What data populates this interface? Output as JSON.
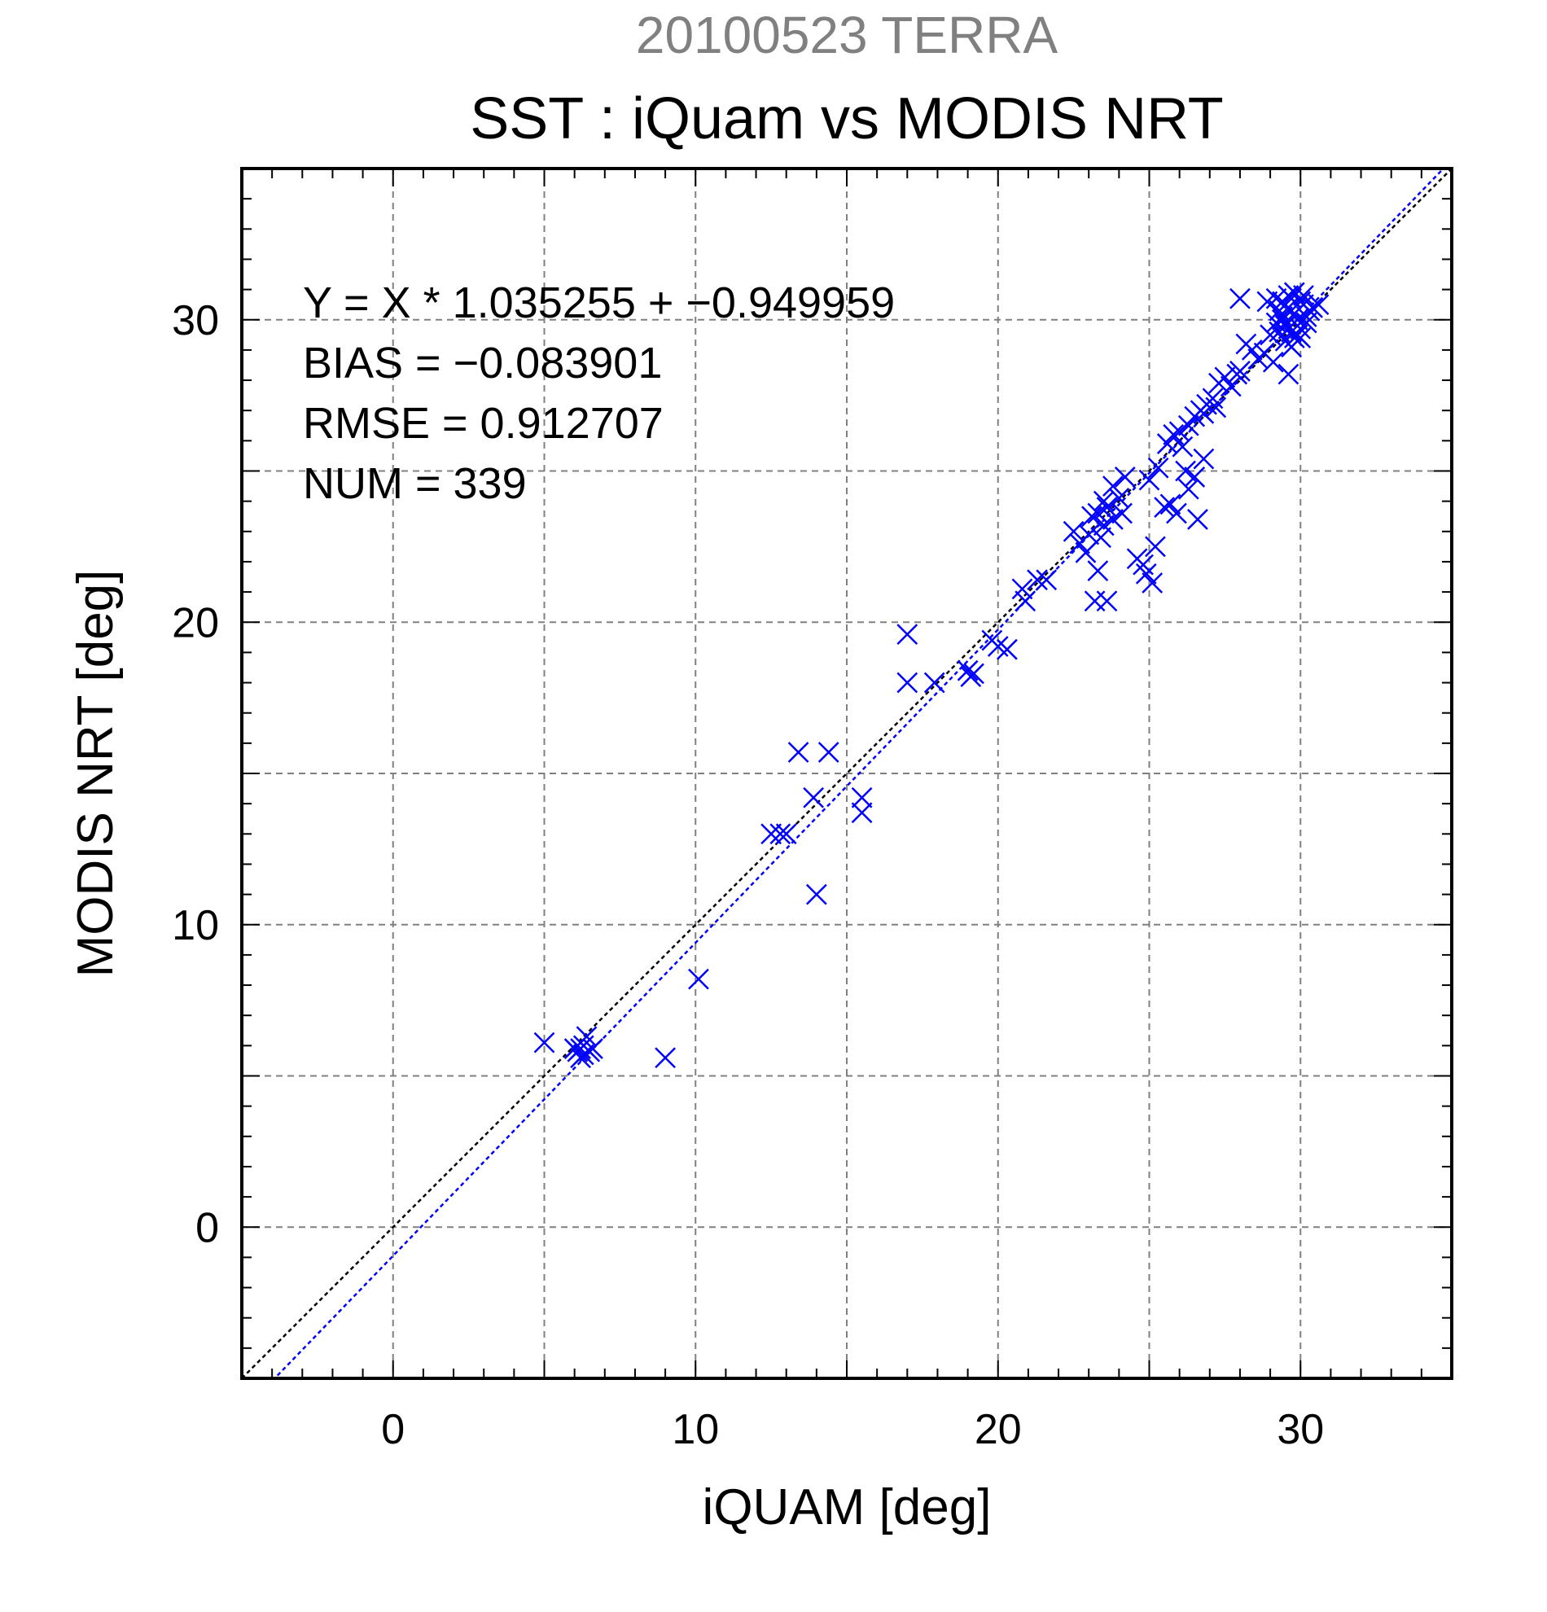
{
  "chart_data": {
    "type": "scatter",
    "supertitle": "20100523 TERRA",
    "title": "SST : iQuam vs MODIS NRT",
    "xlabel": "iQUAM [deg]",
    "ylabel": "MODIS NRT [deg]",
    "xlim": [
      -5,
      35
    ],
    "ylim": [
      -5,
      35
    ],
    "xticks": [
      0,
      10,
      20,
      30
    ],
    "yticks": [
      0,
      10,
      20,
      30
    ],
    "grid": true,
    "marker": "x",
    "colors": {
      "points": "#0000ff",
      "fit_line": "#0000ff",
      "identity_line": "#000000",
      "supertitle": "#808080",
      "grid": "#808080"
    },
    "annotations": [
      "Y = X * 1.035255 + −0.949959",
      "BIAS = −0.083901",
      "RMSE = 0.912707",
      "NUM = 339"
    ],
    "fit": {
      "slope": 1.035255,
      "intercept": -0.949959
    },
    "identity": {
      "slope": 1,
      "intercept": 0
    },
    "points": [
      [
        5.0,
        6.1
      ],
      [
        6.1,
        5.8
      ],
      [
        6.2,
        5.9
      ],
      [
        6.3,
        5.7
      ],
      [
        6.4,
        6.3
      ],
      [
        6.5,
        5.8
      ],
      [
        6.2,
        5.6
      ],
      [
        6.6,
        5.9
      ],
      [
        6.0,
        5.9
      ],
      [
        6.3,
        6.0
      ],
      [
        9.0,
        5.6
      ],
      [
        10.1,
        8.2
      ],
      [
        12.5,
        13.0
      ],
      [
        12.8,
        13.0
      ],
      [
        13.0,
        13.0
      ],
      [
        13.4,
        15.7
      ],
      [
        13.9,
        14.2
      ],
      [
        14.0,
        11.0
      ],
      [
        14.4,
        15.7
      ],
      [
        15.5,
        14.2
      ],
      [
        15.5,
        13.7
      ],
      [
        17.0,
        19.6
      ],
      [
        17.0,
        18.0
      ],
      [
        17.9,
        18.0
      ],
      [
        19.0,
        18.4
      ],
      [
        19.1,
        18.2
      ],
      [
        19.2,
        18.3
      ],
      [
        19.8,
        19.4
      ],
      [
        20.0,
        19.2
      ],
      [
        20.3,
        19.1
      ],
      [
        20.8,
        21.1
      ],
      [
        21.3,
        21.4
      ],
      [
        21.6,
        21.4
      ],
      [
        20.9,
        20.7
      ],
      [
        22.5,
        23.0
      ],
      [
        22.7,
        22.6
      ],
      [
        22.9,
        22.3
      ],
      [
        23.1,
        23.5
      ],
      [
        23.3,
        23.6
      ],
      [
        23.5,
        24.0
      ],
      [
        23.6,
        23.8
      ],
      [
        23.8,
        24.5
      ],
      [
        24.0,
        24.1
      ],
      [
        24.2,
        24.8
      ],
      [
        23.2,
        20.7
      ],
      [
        23.6,
        20.7
      ],
      [
        23.3,
        21.7
      ],
      [
        24.6,
        22.1
      ],
      [
        24.9,
        21.6
      ],
      [
        25.1,
        21.3
      ],
      [
        25.2,
        22.5
      ],
      [
        24.8,
        21.9
      ],
      [
        23.5,
        23.2
      ],
      [
        23.8,
        23.4
      ],
      [
        24.1,
        23.6
      ],
      [
        23.0,
        22.9
      ],
      [
        23.4,
        22.8
      ],
      [
        25.0,
        24.7
      ],
      [
        25.3,
        25.1
      ],
      [
        25.5,
        23.8
      ],
      [
        25.7,
        23.9
      ],
      [
        25.6,
        25.9
      ],
      [
        25.8,
        26.2
      ],
      [
        26.0,
        26.3
      ],
      [
        26.1,
        25.8
      ],
      [
        26.3,
        26.5
      ],
      [
        26.5,
        26.8
      ],
      [
        25.9,
        23.6
      ],
      [
        26.3,
        24.4
      ],
      [
        26.5,
        24.8
      ],
      [
        26.8,
        25.4
      ],
      [
        26.6,
        23.4
      ],
      [
        26.2,
        25.0
      ],
      [
        26.7,
        27.0
      ],
      [
        26.9,
        27.2
      ],
      [
        27.1,
        27.4
      ],
      [
        27.3,
        27.9
      ],
      [
        27.5,
        28.1
      ],
      [
        27.7,
        27.8
      ],
      [
        27.9,
        28.2
      ],
      [
        28.0,
        28.3
      ],
      [
        27.2,
        27.1
      ],
      [
        26.8,
        26.9
      ],
      [
        28.0,
        30.7
      ],
      [
        28.2,
        29.2
      ],
      [
        28.4,
        29.0
      ],
      [
        28.6,
        28.7
      ],
      [
        28.8,
        28.9
      ],
      [
        29.0,
        29.5
      ],
      [
        29.2,
        29.9
      ],
      [
        29.1,
        28.6
      ],
      [
        28.9,
        30.6
      ],
      [
        29.3,
        30.3
      ],
      [
        29.4,
        30.1
      ],
      [
        29.5,
        29.8
      ],
      [
        29.6,
        30.4
      ],
      [
        29.7,
        29.6
      ],
      [
        29.8,
        30.2
      ],
      [
        29.9,
        30.0
      ],
      [
        30.0,
        29.7
      ],
      [
        30.1,
        30.5
      ],
      [
        30.2,
        29.9
      ],
      [
        30.3,
        30.3
      ],
      [
        29.6,
        30.8
      ],
      [
        29.8,
        30.9
      ],
      [
        30.0,
        30.6
      ],
      [
        29.5,
        29.3
      ],
      [
        29.7,
        29.1
      ],
      [
        30.0,
        29.4
      ],
      [
        29.6,
        28.2
      ],
      [
        30.4,
        30.4
      ],
      [
        30.6,
        30.5
      ],
      [
        29.9,
        29.5
      ],
      [
        29.2,
        30.7
      ],
      [
        29.4,
        30.6
      ],
      [
        29.7,
        30.7
      ],
      [
        30.1,
        30.8
      ],
      [
        29.3,
        29.6
      ],
      [
        29.5,
        29.9
      ],
      [
        29.8,
        29.4
      ],
      [
        30.2,
        30.1
      ],
      [
        29.4,
        30.0
      ],
      [
        29.6,
        29.7
      ]
    ]
  }
}
